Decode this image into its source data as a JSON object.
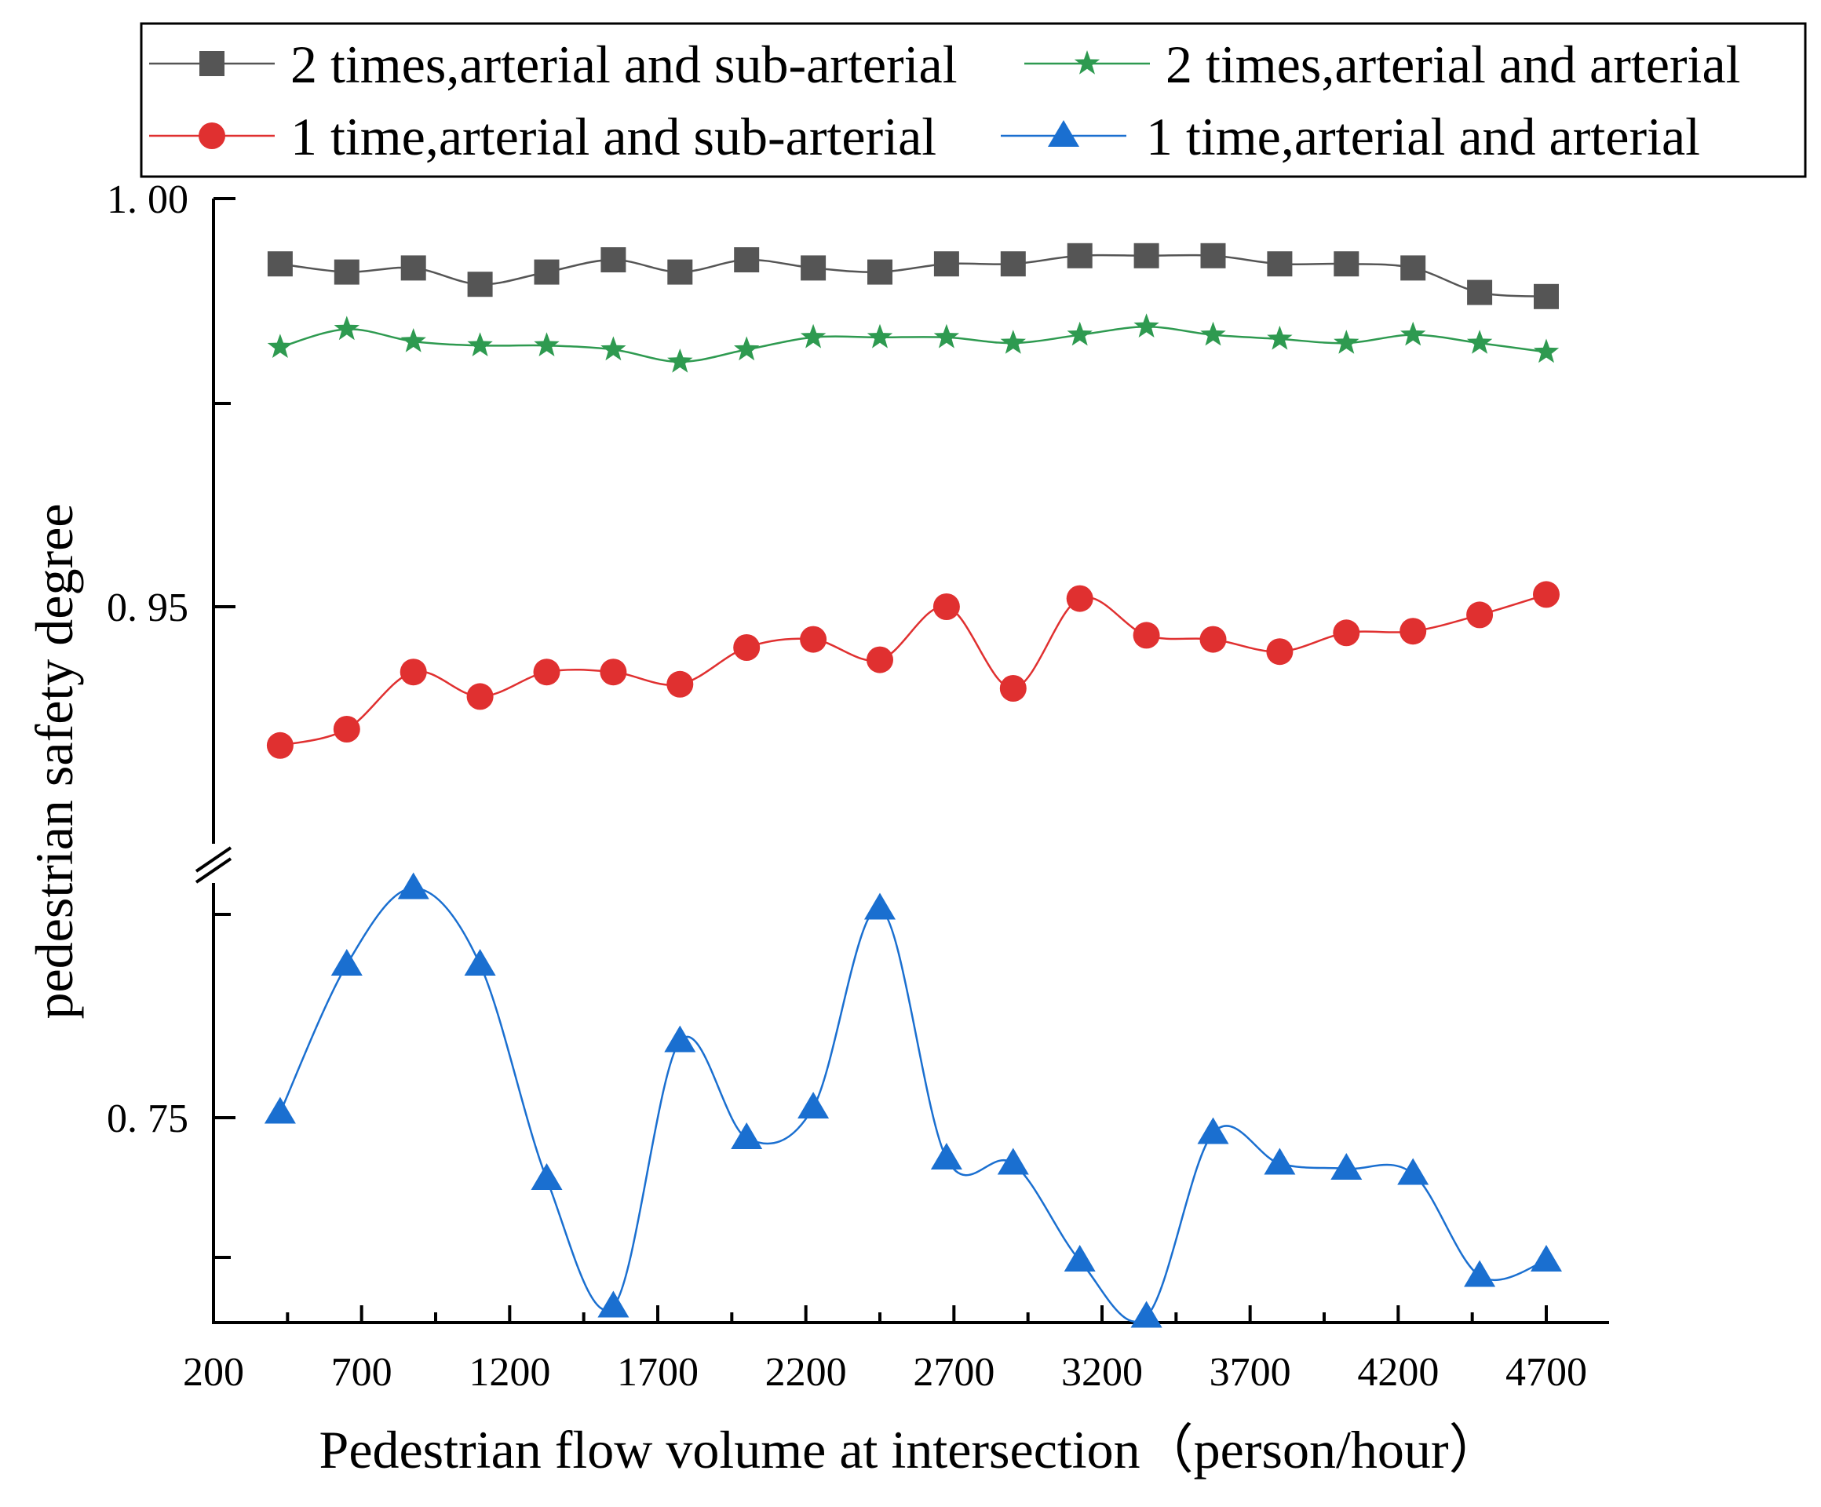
{
  "chart_data": {
    "type": "line",
    "xlabel": "Pedestrian flow volume at intersection（person/hour）",
    "ylabel": "pedestrian safety degree",
    "x_ticks": [
      "200",
      "700",
      "1200",
      "1700",
      "2200",
      "2700",
      "3200",
      "3700",
      "4200",
      "4700"
    ],
    "y_ticks": [
      "1.00",
      "0.95",
      "0.75"
    ],
    "xlim": [
      200,
      4900
    ],
    "ylim_upper": [
      0.926,
      1.0
    ],
    "ylim_lower": [
      0.72,
      0.775
    ],
    "axis_break": "y",
    "legend_position": "top",
    "x": [
      425,
      650,
      875,
      1100,
      1325,
      1550,
      1775,
      2000,
      2225,
      2450,
      2675,
      2900,
      3125,
      3350,
      3575,
      3800,
      4025,
      4250,
      4475,
      4700
    ],
    "series": [
      {
        "name": "2 times,arterial and sub-arterial",
        "color": "#555555",
        "marker": "square",
        "values": [
          0.992,
          0.991,
          0.9915,
          0.9895,
          0.991,
          0.9925,
          0.991,
          0.9925,
          0.9915,
          0.991,
          0.992,
          0.992,
          0.993,
          0.993,
          0.993,
          0.992,
          0.992,
          0.9915,
          0.9885,
          0.988
        ]
      },
      {
        "name": "2 times,arterial and arterial",
        "color": "#2e9a50",
        "marker": "star",
        "values": [
          0.9818,
          0.984,
          0.9825,
          0.982,
          0.982,
          0.9815,
          0.98,
          0.9815,
          0.983,
          0.983,
          0.983,
          0.9823,
          0.9833,
          0.9843,
          0.9833,
          0.9828,
          0.9823,
          0.9833,
          0.9823,
          0.9812
        ]
      },
      {
        "name": "1 time,arterial and sub-arterial",
        "color": "#e03030",
        "marker": "circle",
        "values": [
          0.933,
          0.935,
          0.942,
          0.939,
          0.942,
          0.942,
          0.9405,
          0.945,
          0.946,
          0.9435,
          0.95,
          0.94,
          0.951,
          0.9465,
          0.946,
          0.9445,
          0.9468,
          0.947,
          0.949,
          0.9515
        ]
      },
      {
        "name": "1 time,arterial and arterial",
        "color": "#1a6fd0",
        "marker": "triangle",
        "values": [
          0.7505,
          0.765,
          0.7725,
          0.765,
          0.744,
          0.7315,
          0.7575,
          0.748,
          0.751,
          0.7705,
          0.746,
          0.7455,
          0.736,
          0.7305,
          0.7485,
          0.7455,
          0.745,
          0.7445,
          0.7345,
          0.736
        ]
      }
    ]
  }
}
